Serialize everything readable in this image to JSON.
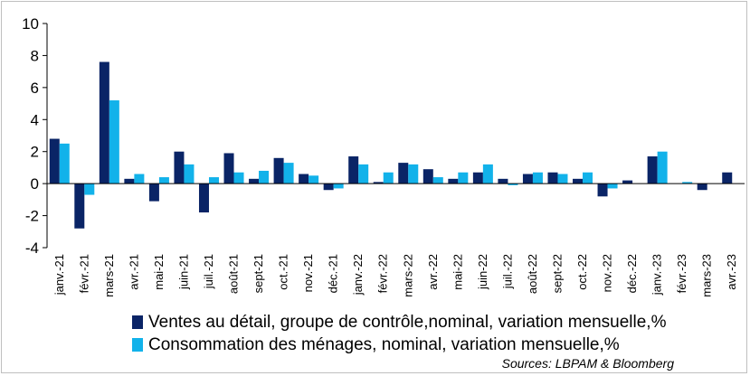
{
  "chart_data": {
    "type": "bar",
    "categories": [
      "janv.-21",
      "févr.-21",
      "mars-21",
      "avr.-21",
      "mai-21",
      "juin-21",
      "juil.-21",
      "août-21",
      "sept-21",
      "oct.-21",
      "nov.-21",
      "déc.-21",
      "janv.-22",
      "févr.-22",
      "mars-22",
      "avr.-22",
      "mai-22",
      "juin-22",
      "juil.-22",
      "août-22",
      "sept-22",
      "oct.-22",
      "nov.-22",
      "déc.-22",
      "janv.-23",
      "févr.-23",
      "mars-23",
      "avr.-23"
    ],
    "series": [
      {
        "name": "Ventes au détail, groupe de contrôle,nominal, variation mensuelle,%",
        "color": "#0a2466",
        "values": [
          2.8,
          -2.8,
          7.6,
          0.3,
          -1.1,
          2.0,
          -1.8,
          1.9,
          0.3,
          1.6,
          0.6,
          -0.4,
          1.7,
          0.1,
          1.3,
          0.9,
          0.3,
          0.7,
          0.3,
          0.6,
          0.7,
          0.3,
          -0.8,
          0.2,
          1.7,
          0.0,
          -0.4,
          0.7
        ]
      },
      {
        "name": "Consommation des ménages, nominal, variation mensuelle,%",
        "color": "#12b2ea",
        "values": [
          2.5,
          -0.7,
          5.2,
          0.6,
          0.4,
          1.2,
          0.4,
          0.7,
          0.8,
          1.3,
          0.5,
          -0.3,
          1.2,
          0.7,
          1.2,
          0.4,
          0.7,
          1.2,
          -0.1,
          0.7,
          0.6,
          0.7,
          -0.3,
          0.0,
          2.0,
          0.1,
          0.0,
          0.0
        ]
      }
    ],
    "yticks": [
      -4,
      -2,
      0,
      2,
      4,
      6,
      8,
      10
    ],
    "ylim": [
      -4,
      10
    ],
    "title": "",
    "xlabel": "",
    "ylabel": "",
    "legend_position": "bottom-left",
    "grid": false
  },
  "source": "Sources: LBPAM & Bloomberg"
}
